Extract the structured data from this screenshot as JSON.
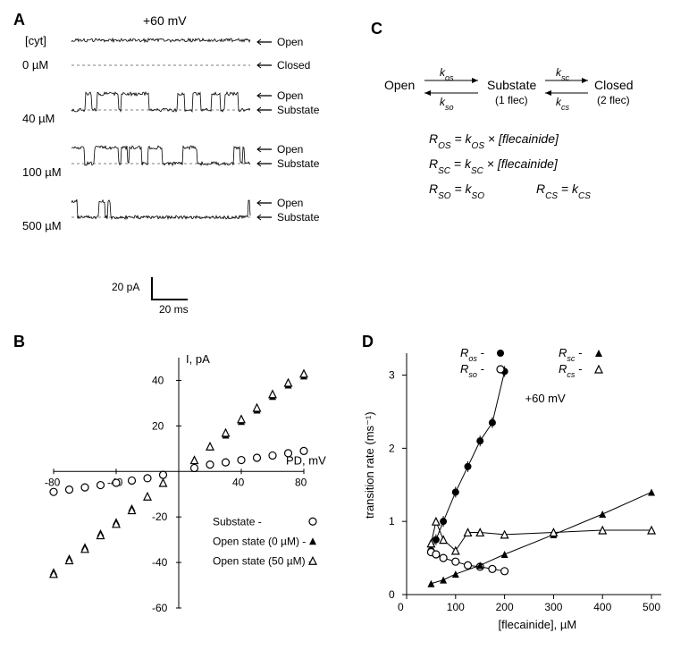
{
  "panelA": {
    "label": "A",
    "voltage_label": "+60 mV",
    "cyt_label": "[cyt]",
    "concentrations": [
      "0 µM",
      "40 µM",
      "100 µM",
      "500 µM"
    ],
    "state_labels": [
      "Open",
      "Closed",
      "Open",
      "Substate",
      "Open",
      "Substate",
      "Open",
      "Substate"
    ],
    "scalebar_x": "20 ms",
    "scalebar_y": "20 pA",
    "trace_color": "#000000",
    "dashline_color": "#000000"
  },
  "panelB": {
    "label": "B",
    "type": "scatter-line",
    "xlabel": "PD, mV",
    "ylabel": "I, pA",
    "xlim": [
      -80,
      80
    ],
    "ylim": [
      -60,
      50
    ],
    "xticks": [
      -80,
      -40,
      40,
      80
    ],
    "yticks": [
      -60,
      -40,
      -20,
      20,
      40
    ],
    "legend": [
      {
        "label": "Substate",
        "marker": "open-circle"
      },
      {
        "label": "Open state   (0 µM)",
        "marker": "filled-triangle"
      },
      {
        "label": "Open state (50 µM)",
        "marker": "open-triangle"
      }
    ],
    "series": {
      "substate": {
        "x": [
          -80,
          -70,
          -60,
          -50,
          -40,
          -30,
          -20,
          -10,
          10,
          20,
          30,
          40,
          50,
          60,
          70,
          80
        ],
        "y": [
          -9,
          -8,
          -7,
          -6,
          -5,
          -4,
          -3,
          -1.5,
          1.5,
          3,
          4,
          5,
          6,
          7,
          8,
          9
        ],
        "marker": "open-circle"
      },
      "open0": {
        "x": [
          -80,
          -70,
          -60,
          -50,
          -40,
          -30,
          -20,
          -10,
          10,
          20,
          30,
          40,
          50,
          60,
          70,
          80
        ],
        "y": [
          -44,
          -38,
          -33,
          -27,
          -22,
          -16,
          -11,
          -5,
          5,
          11,
          16,
          22,
          27,
          33,
          38,
          42
        ],
        "marker": "filled-triangle"
      },
      "open50": {
        "x": [
          -80,
          -70,
          -60,
          -50,
          -40,
          -30,
          -20,
          -10,
          10,
          20,
          30,
          40,
          50,
          60,
          70,
          80
        ],
        "y": [
          -45,
          -39,
          -34,
          -28,
          -23,
          -17,
          -11,
          -5,
          5,
          11,
          17,
          23,
          28,
          34,
          39,
          43
        ],
        "marker": "open-triangle"
      }
    },
    "colors": {
      "axis": "#000000",
      "marker_fill": "#000000",
      "marker_stroke": "#000000",
      "bg": "#ffffff"
    },
    "font_size": 13
  },
  "panelC": {
    "label": "C",
    "scheme": {
      "states": [
        "Open",
        "Substate",
        "Closed"
      ],
      "sublabels": [
        "",
        "(1 flec)",
        "(2 flec)"
      ],
      "rates_fwd": [
        "k_os",
        "k_sc"
      ],
      "rates_rev": [
        "k_so",
        "k_cs"
      ]
    },
    "equations": [
      "R_OS = k_OS × [flecainide]",
      "R_SC = k_SC × [flecainide]",
      "R_SO = k_SO      R_CS = k_CS"
    ],
    "font_size": 14,
    "color": "#000000"
  },
  "panelD": {
    "label": "D",
    "type": "scatter-line",
    "xlabel": "[flecainide], µM",
    "ylabel": "transition rate (ms⁻¹)",
    "voltage_label": "+60 mV",
    "xlim": [
      0,
      520
    ],
    "ylim": [
      0,
      3.3
    ],
    "xticks": [
      0,
      100,
      200,
      300,
      400,
      500
    ],
    "yticks": [
      0,
      1,
      2,
      3
    ],
    "legend": [
      {
        "label": "R_os",
        "marker": "filled-circle"
      },
      {
        "label": "R_so",
        "marker": "open-circle"
      },
      {
        "label": "R_sc",
        "marker": "filled-triangle"
      },
      {
        "label": "R_cs",
        "marker": "open-triangle"
      }
    ],
    "series": {
      "Ros": {
        "x": [
          50,
          60,
          75,
          100,
          125,
          150,
          175,
          200
        ],
        "y": [
          0.6,
          0.75,
          1.0,
          1.4,
          1.75,
          2.1,
          2.35,
          3.05
        ],
        "marker": "filled-circle",
        "line": true
      },
      "Rso": {
        "x": [
          50,
          60,
          75,
          100,
          125,
          150,
          175,
          200
        ],
        "y": [
          0.58,
          0.55,
          0.5,
          0.45,
          0.4,
          0.38,
          0.35,
          0.32
        ],
        "marker": "open-circle",
        "line": true
      },
      "Rsc": {
        "x": [
          50,
          75,
          100,
          150,
          200,
          300,
          400,
          500
        ],
        "y": [
          0.15,
          0.2,
          0.28,
          0.4,
          0.55,
          0.82,
          1.1,
          1.4
        ],
        "marker": "filled-triangle",
        "line": true
      },
      "Rcs": {
        "x": [
          50,
          60,
          75,
          100,
          125,
          150,
          200,
          300,
          400,
          500
        ],
        "y": [
          0.7,
          1.0,
          0.75,
          0.6,
          0.85,
          0.85,
          0.82,
          0.85,
          0.88,
          0.88
        ],
        "marker": "open-triangle",
        "line": true
      }
    },
    "colors": {
      "axis": "#000000",
      "bg": "#ffffff"
    },
    "font_size": 13
  }
}
